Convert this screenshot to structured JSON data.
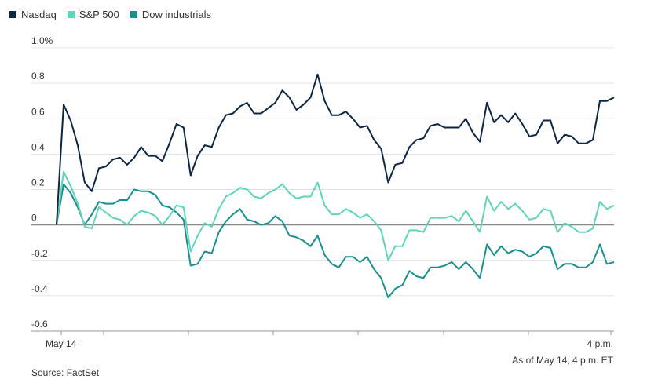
{
  "chart_data": {
    "type": "line",
    "y_ticks": [
      "1.0%",
      "0.8",
      "0.6",
      "0.4",
      "0.2",
      "0",
      "-0.2",
      "-0.4",
      "-0.6"
    ],
    "ylim": [
      -0.6,
      1.0
    ],
    "x_labels": [
      "May 14",
      "4 p.m."
    ],
    "grid": "horizontal",
    "legend_placement": "top-left",
    "colors": {
      "nasdaq": "#0b2545",
      "sp500": "#5fd4bd",
      "dow": "#1a8f8f",
      "zero": "#888888",
      "grid": "#e3e3e3"
    },
    "series": [
      {
        "name": "Nasdaq",
        "color": "#0b2545",
        "values": [
          0,
          0.68,
          0.59,
          0.45,
          0.24,
          0.19,
          0.32,
          0.33,
          0.37,
          0.38,
          0.34,
          0.38,
          0.44,
          0.39,
          0.39,
          0.36,
          0.46,
          0.57,
          0.55,
          0.28,
          0.39,
          0.45,
          0.44,
          0.55,
          0.62,
          0.63,
          0.67,
          0.69,
          0.63,
          0.63,
          0.66,
          0.69,
          0.76,
          0.72,
          0.65,
          0.68,
          0.72,
          0.85,
          0.7,
          0.62,
          0.62,
          0.64,
          0.6,
          0.55,
          0.56,
          0.48,
          0.43,
          0.24,
          0.34,
          0.35,
          0.44,
          0.48,
          0.49,
          0.56,
          0.57,
          0.55,
          0.55,
          0.55,
          0.6,
          0.52,
          0.47,
          0.69,
          0.58,
          0.62,
          0.58,
          0.63,
          0.57,
          0.5,
          0.51,
          0.59,
          0.59,
          0.46,
          0.51,
          0.5,
          0.46,
          0.46,
          0.48,
          0.7,
          0.7,
          0.72
        ]
      },
      {
        "name": "S&P 500",
        "color": "#5fd4bd",
        "values": [
          0,
          0.3,
          0.22,
          0.12,
          -0.01,
          -0.02,
          0.1,
          0.07,
          0.04,
          0.03,
          0.0,
          0.05,
          0.08,
          0.07,
          0.05,
          0.0,
          0.05,
          0.11,
          0.1,
          -0.15,
          -0.06,
          0.01,
          -0.01,
          0.09,
          0.16,
          0.18,
          0.21,
          0.2,
          0.16,
          0.15,
          0.18,
          0.2,
          0.23,
          0.18,
          0.15,
          0.16,
          0.16,
          0.24,
          0.11,
          0.06,
          0.06,
          0.09,
          0.07,
          0.04,
          0.06,
          0.02,
          -0.03,
          -0.2,
          -0.12,
          -0.12,
          -0.03,
          -0.03,
          -0.04,
          0.04,
          0.04,
          0.04,
          0.05,
          0.02,
          0.08,
          0.02,
          -0.04,
          0.16,
          0.08,
          0.13,
          0.09,
          0.12,
          0.08,
          0.03,
          0.04,
          0.09,
          0.08,
          -0.04,
          0.01,
          -0.01,
          -0.04,
          -0.04,
          -0.02,
          0.13,
          0.09,
          0.11
        ]
      },
      {
        "name": "Dow industrials",
        "color": "#1a8f8f",
        "values": [
          0,
          0.23,
          0.18,
          0.1,
          0.0,
          0.06,
          0.13,
          0.12,
          0.12,
          0.14,
          0.14,
          0.2,
          0.19,
          0.19,
          0.17,
          0.11,
          0.1,
          0.07,
          0.03,
          -0.23,
          -0.22,
          -0.15,
          -0.16,
          -0.04,
          0.02,
          0.06,
          0.09,
          0.03,
          0.02,
          0.0,
          0.01,
          0.05,
          0.02,
          -0.06,
          -0.07,
          -0.09,
          -0.12,
          -0.06,
          -0.17,
          -0.22,
          -0.24,
          -0.18,
          -0.18,
          -0.21,
          -0.18,
          -0.25,
          -0.3,
          -0.41,
          -0.36,
          -0.34,
          -0.26,
          -0.29,
          -0.3,
          -0.24,
          -0.24,
          -0.23,
          -0.21,
          -0.25,
          -0.21,
          -0.25,
          -0.3,
          -0.11,
          -0.17,
          -0.12,
          -0.16,
          -0.14,
          -0.15,
          -0.18,
          -0.16,
          -0.12,
          -0.13,
          -0.25,
          -0.22,
          -0.22,
          -0.24,
          -0.24,
          -0.21,
          -0.11,
          -0.22,
          -0.21
        ]
      }
    ]
  },
  "footer": {
    "asof": "As of May 14, 4 p.m. ET",
    "source": "Source: FactSet"
  }
}
